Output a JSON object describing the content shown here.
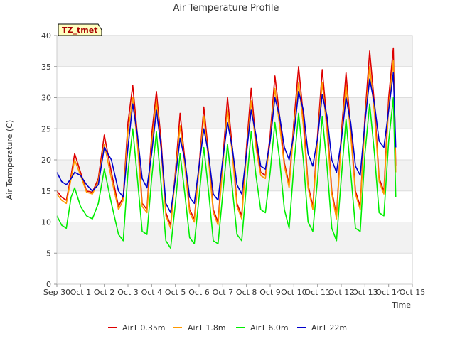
{
  "chart_data": {
    "type": "line",
    "title": "Air Temperature Profile",
    "xlabel": "Time",
    "ylabel": "Air Termperature (C)",
    "site_tag": "TZ_tmet",
    "xlim": [
      0,
      15
    ],
    "ylim": [
      0,
      40
    ],
    "x_ticks": [
      {
        "x": 0,
        "label": "Sep 30"
      },
      {
        "x": 1,
        "label": "Oct 1"
      },
      {
        "x": 2,
        "label": "Oct 2"
      },
      {
        "x": 3,
        "label": "Oct 3"
      },
      {
        "x": 4,
        "label": "Oct 4"
      },
      {
        "x": 5,
        "label": "Oct 5"
      },
      {
        "x": 6,
        "label": "Oct 6"
      },
      {
        "x": 7,
        "label": "Oct 7"
      },
      {
        "x": 8,
        "label": "Oct 8"
      },
      {
        "x": 9,
        "label": "Oct 9"
      },
      {
        "x": 10,
        "label": "Oct 10"
      },
      {
        "x": 11,
        "label": "Oct 11"
      },
      {
        "x": 12,
        "label": "Oct 12"
      },
      {
        "x": 13,
        "label": "Oct 13"
      },
      {
        "x": 14,
        "label": "Oct 14"
      },
      {
        "x": 15,
        "label": "Oct 15"
      }
    ],
    "y_ticks": [
      0,
      5,
      10,
      15,
      20,
      25,
      30,
      35,
      40
    ],
    "grid": true,
    "legend_position": "bottom-center",
    "series": [
      {
        "name": "AirT 0.35m",
        "color": "#dd0000",
        "x": [
          0.0,
          0.2,
          0.4,
          0.6,
          0.75,
          1.0,
          1.25,
          1.5,
          1.75,
          2.0,
          2.3,
          2.6,
          2.8,
          3.0,
          3.2,
          3.4,
          3.6,
          3.8,
          4.0,
          4.2,
          4.4,
          4.6,
          4.8,
          5.0,
          5.2,
          5.4,
          5.6,
          5.8,
          6.0,
          6.2,
          6.4,
          6.6,
          6.8,
          7.0,
          7.2,
          7.4,
          7.6,
          7.8,
          8.0,
          8.2,
          8.4,
          8.6,
          8.8,
          9.0,
          9.2,
          9.4,
          9.6,
          9.8,
          10.0,
          10.2,
          10.4,
          10.6,
          10.8,
          11.0,
          11.2,
          11.4,
          11.6,
          11.8,
          12.0,
          12.2,
          12.4,
          12.6,
          12.8,
          13.0,
          13.2,
          13.4,
          13.6,
          13.8,
          14.0,
          14.2,
          14.3
        ],
        "values": [
          15.0,
          14.0,
          13.5,
          17.5,
          21.0,
          18.0,
          15.0,
          14.8,
          17.0,
          24.0,
          18.0,
          12.5,
          14.0,
          26.0,
          32.0,
          24.0,
          13.0,
          12.0,
          24.0,
          31.0,
          23.0,
          11.5,
          9.5,
          18.0,
          27.5,
          20.0,
          12.0,
          10.5,
          19.0,
          28.5,
          21.0,
          12.0,
          10.0,
          20.0,
          30.0,
          22.0,
          13.0,
          11.0,
          22.0,
          31.5,
          23.0,
          18.0,
          17.5,
          24.0,
          33.5,
          27.0,
          19.5,
          16.0,
          26.0,
          35.0,
          27.0,
          16.0,
          12.5,
          24.0,
          34.5,
          26.0,
          15.0,
          11.0,
          24.0,
          34.0,
          25.0,
          15.0,
          12.5,
          27.0,
          37.5,
          29.0,
          17.0,
          15.0,
          30.0,
          38.0,
          19.0
        ]
      },
      {
        "name": "AirT 1.8m",
        "color": "#ff9900",
        "x": [
          0.0,
          0.2,
          0.4,
          0.6,
          0.75,
          1.0,
          1.25,
          1.5,
          1.75,
          2.0,
          2.3,
          2.6,
          2.8,
          3.0,
          3.2,
          3.4,
          3.6,
          3.8,
          4.0,
          4.2,
          4.4,
          4.6,
          4.8,
          5.0,
          5.2,
          5.4,
          5.6,
          5.8,
          6.0,
          6.2,
          6.4,
          6.6,
          6.8,
          7.0,
          7.2,
          7.4,
          7.6,
          7.8,
          8.0,
          8.2,
          8.4,
          8.6,
          8.8,
          9.0,
          9.2,
          9.4,
          9.6,
          9.8,
          10.0,
          10.2,
          10.4,
          10.6,
          10.8,
          11.0,
          11.2,
          11.4,
          11.6,
          11.8,
          12.0,
          12.2,
          12.4,
          12.6,
          12.8,
          13.0,
          13.2,
          13.4,
          13.6,
          13.8,
          14.0,
          14.2,
          14.3
        ],
        "values": [
          14.5,
          13.5,
          13.0,
          17.0,
          20.0,
          17.5,
          14.8,
          14.5,
          16.5,
          22.5,
          17.0,
          12.0,
          13.5,
          24.5,
          30.0,
          22.5,
          12.5,
          11.5,
          22.5,
          29.5,
          21.5,
          11.0,
          9.0,
          17.5,
          25.5,
          19.0,
          11.5,
          10.0,
          18.5,
          27.0,
          20.0,
          11.5,
          9.5,
          19.0,
          28.0,
          21.0,
          12.5,
          10.5,
          21.0,
          29.5,
          22.0,
          17.5,
          17.0,
          23.0,
          31.5,
          25.5,
          19.0,
          15.5,
          25.0,
          32.5,
          25.5,
          15.5,
          12.0,
          23.0,
          32.5,
          24.5,
          14.5,
          10.5,
          23.0,
          32.0,
          24.0,
          14.5,
          12.0,
          26.0,
          35.0,
          27.5,
          16.5,
          14.5,
          28.5,
          36.0,
          18.0
        ]
      },
      {
        "name": "AirT 6.0m",
        "color": "#00ee00",
        "x": [
          0.0,
          0.2,
          0.4,
          0.6,
          0.75,
          1.0,
          1.25,
          1.5,
          1.75,
          2.0,
          2.3,
          2.6,
          2.8,
          3.0,
          3.2,
          3.4,
          3.6,
          3.8,
          4.0,
          4.2,
          4.4,
          4.6,
          4.8,
          5.0,
          5.2,
          5.4,
          5.6,
          5.8,
          6.0,
          6.2,
          6.4,
          6.6,
          6.8,
          7.0,
          7.2,
          7.4,
          7.6,
          7.8,
          8.0,
          8.2,
          8.4,
          8.6,
          8.8,
          9.0,
          9.2,
          9.4,
          9.6,
          9.8,
          10.0,
          10.2,
          10.4,
          10.6,
          10.8,
          11.0,
          11.2,
          11.4,
          11.6,
          11.8,
          12.0,
          12.2,
          12.4,
          12.6,
          12.8,
          13.0,
          13.2,
          13.4,
          13.6,
          13.8,
          14.0,
          14.2,
          14.3
        ],
        "values": [
          11.0,
          9.5,
          9.0,
          14.0,
          15.5,
          12.5,
          11.0,
          10.5,
          13.0,
          18.5,
          13.0,
          8.0,
          7.0,
          18.0,
          25.0,
          17.0,
          8.5,
          8.0,
          17.0,
          24.5,
          16.0,
          7.0,
          5.8,
          13.0,
          21.0,
          14.5,
          7.5,
          6.5,
          14.0,
          22.0,
          15.0,
          7.0,
          6.5,
          14.5,
          22.5,
          15.5,
          8.0,
          7.0,
          16.0,
          24.5,
          17.5,
          12.0,
          11.5,
          18.0,
          26.0,
          20.0,
          12.0,
          9.0,
          19.0,
          27.5,
          20.0,
          10.0,
          8.5,
          17.0,
          27.0,
          19.0,
          9.0,
          7.0,
          17.0,
          26.5,
          18.0,
          9.0,
          8.5,
          21.0,
          29.0,
          21.0,
          11.5,
          11.0,
          23.0,
          30.0,
          14.0
        ]
      },
      {
        "name": "AirT 22m",
        "color": "#0000cc",
        "x": [
          0.0,
          0.2,
          0.4,
          0.6,
          0.75,
          1.0,
          1.25,
          1.5,
          1.75,
          2.0,
          2.3,
          2.6,
          2.8,
          3.0,
          3.2,
          3.4,
          3.6,
          3.8,
          4.0,
          4.2,
          4.4,
          4.6,
          4.8,
          5.0,
          5.2,
          5.4,
          5.6,
          5.8,
          6.0,
          6.2,
          6.4,
          6.6,
          6.8,
          7.0,
          7.2,
          7.4,
          7.6,
          7.8,
          8.0,
          8.2,
          8.4,
          8.6,
          8.8,
          9.0,
          9.2,
          9.4,
          9.6,
          9.8,
          10.0,
          10.2,
          10.4,
          10.6,
          10.8,
          11.0,
          11.2,
          11.4,
          11.6,
          11.8,
          12.0,
          12.2,
          12.4,
          12.6,
          12.8,
          13.0,
          13.2,
          13.4,
          13.6,
          13.8,
          14.0,
          14.2,
          14.3
        ],
        "values": [
          18.0,
          16.5,
          16.0,
          17.0,
          18.0,
          17.5,
          16.0,
          15.0,
          16.0,
          22.0,
          20.0,
          15.0,
          14.0,
          22.0,
          29.0,
          24.0,
          17.0,
          15.5,
          21.0,
          28.0,
          22.0,
          13.0,
          11.5,
          17.0,
          23.5,
          20.0,
          14.0,
          13.0,
          19.0,
          25.0,
          21.0,
          14.5,
          13.5,
          20.0,
          26.0,
          22.0,
          16.0,
          14.5,
          21.0,
          28.0,
          24.0,
          19.0,
          18.5,
          23.0,
          30.0,
          27.0,
          22.0,
          20.0,
          24.0,
          31.0,
          28.0,
          21.0,
          19.0,
          23.5,
          30.5,
          27.0,
          20.0,
          18.0,
          23.0,
          30.0,
          26.0,
          19.0,
          17.5,
          26.0,
          33.0,
          29.0,
          23.0,
          22.0,
          28.0,
          34.0,
          22.0
        ]
      }
    ]
  }
}
